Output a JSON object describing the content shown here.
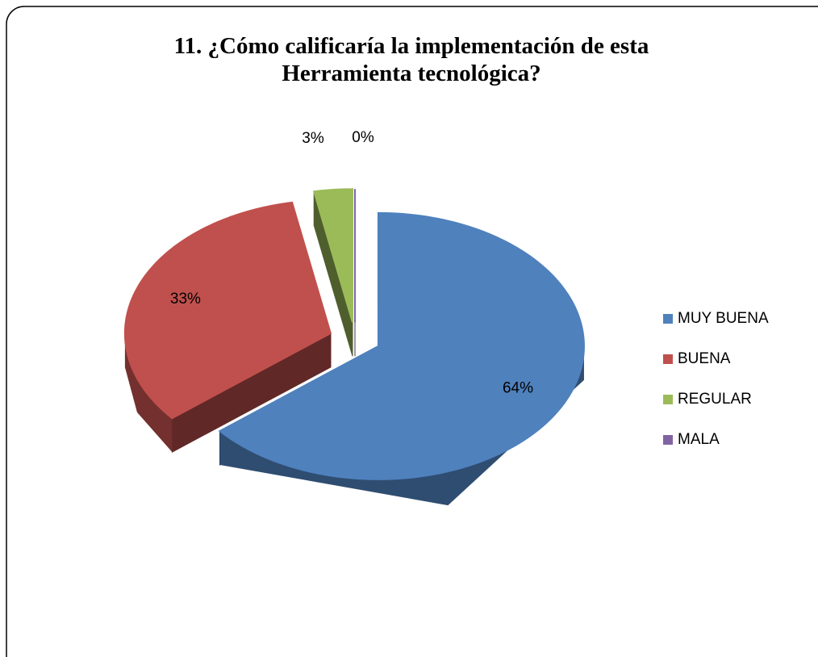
{
  "chart_data": {
    "type": "pie",
    "title": "11. ¿Cómo calificaría la implementación de esta Herramienta tecnológica?",
    "categories": [
      "MUY BUENA",
      "BUENA",
      "REGULAR",
      "MALA"
    ],
    "values": [
      64,
      33,
      3,
      0
    ],
    "value_labels": [
      "64%",
      "33%",
      "3%",
      "0%"
    ],
    "colors": [
      "#4f81bd",
      "#c0504d",
      "#9bbb59",
      "#8064a2"
    ],
    "legend": "right"
  }
}
